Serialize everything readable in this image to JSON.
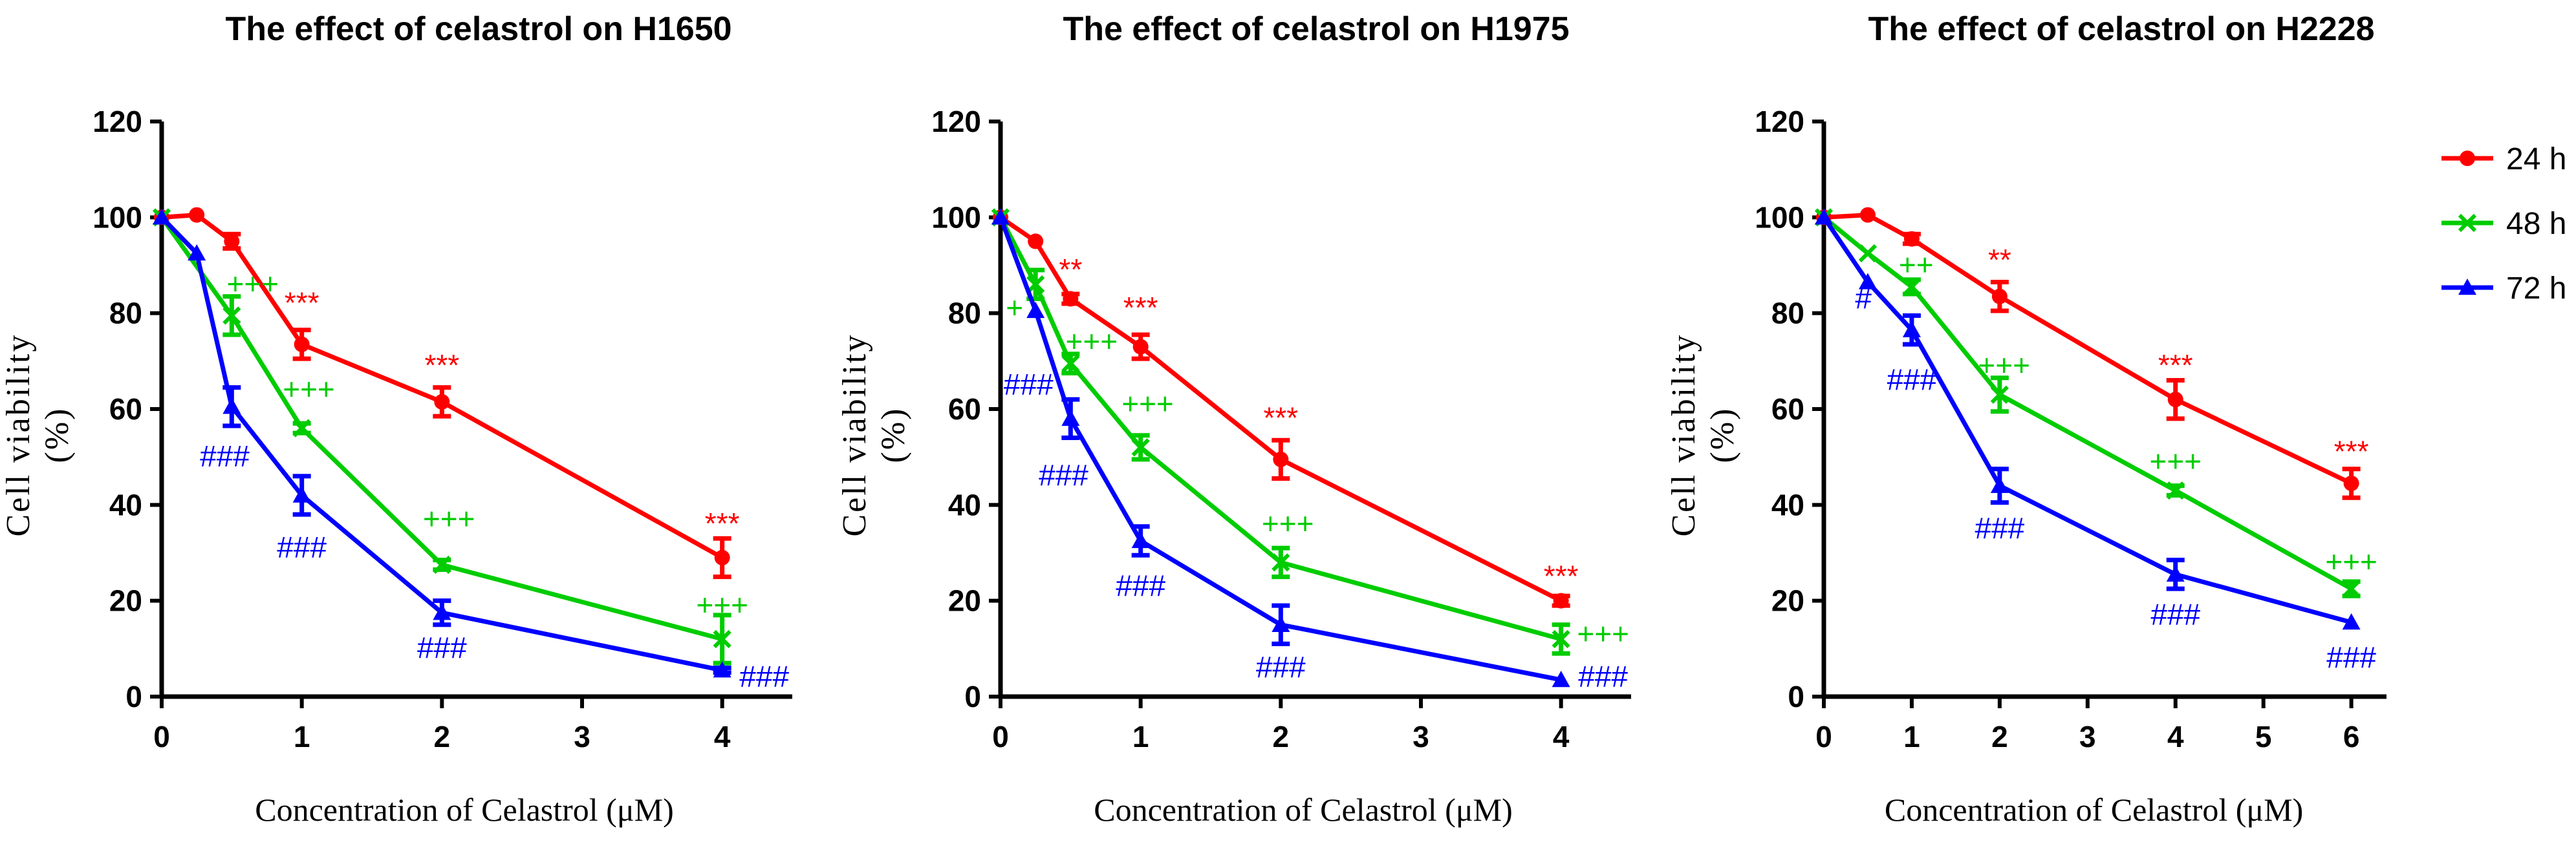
{
  "chart_data": [
    {
      "type": "line",
      "title": "The effect of celastrol on H1650",
      "xlabel": "Concentration  of Celastrol (μM)",
      "ylabel": "Cell viability",
      "ylabel_unit": "(%)",
      "xlim": [
        0,
        4.5
      ],
      "ylim": [
        0,
        120
      ],
      "x_ticks": [
        0,
        1,
        2,
        3,
        4
      ],
      "y_ticks": [
        0,
        20,
        40,
        60,
        80,
        100,
        120
      ],
      "series": [
        {
          "name": "24 h",
          "color": "#ff0000",
          "marker": "circle",
          "x": [
            0,
            0.25,
            0.5,
            1,
            2,
            4
          ],
          "y": [
            100,
            100.5,
            95,
            73.5,
            61.5,
            29
          ],
          "err": [
            0,
            0,
            1.5,
            3,
            3,
            4
          ]
        },
        {
          "name": "48 h",
          "color": "#00cc00",
          "marker": "cross",
          "x": [
            0,
            0.5,
            1,
            2,
            4
          ],
          "y": [
            100,
            79.5,
            56,
            27.5,
            12
          ],
          "err": [
            0,
            4,
            1,
            1,
            5
          ]
        },
        {
          "name": "72 h",
          "color": "#0000ff",
          "marker": "triangle",
          "x": [
            0,
            0.25,
            0.5,
            1,
            2,
            4
          ],
          "y": [
            100,
            92.5,
            60.5,
            42,
            17.5,
            5.5
          ],
          "err": [
            0,
            0,
            4,
            4,
            2.5,
            0.5
          ]
        }
      ],
      "annotations": [
        {
          "text": "***",
          "x": 1,
          "y": 80,
          "color": "#ff0000"
        },
        {
          "text": "***",
          "x": 2,
          "y": 67,
          "color": "#ff0000"
        },
        {
          "text": "***",
          "x": 4,
          "y": 34,
          "color": "#ff0000"
        },
        {
          "text": "+++",
          "x": 0.65,
          "y": 84,
          "color": "#00cc00"
        },
        {
          "text": "+++",
          "x": 1.05,
          "y": 62,
          "color": "#00cc00"
        },
        {
          "text": "+++",
          "x": 2.05,
          "y": 35,
          "color": "#00cc00"
        },
        {
          "text": "+++",
          "x": 4.0,
          "y": 17,
          "color": "#00cc00"
        },
        {
          "text": "###",
          "x": 0.45,
          "y": 48,
          "color": "#0000ff"
        },
        {
          "text": "###",
          "x": 1.0,
          "y": 29,
          "color": "#0000ff"
        },
        {
          "text": "###",
          "x": 2.0,
          "y": 8,
          "color": "#0000ff"
        },
        {
          "text": "###",
          "x": 4.3,
          "y": 2,
          "color": "#0000ff"
        }
      ]
    },
    {
      "type": "line",
      "title": "The effect of celastrol on H1975",
      "xlabel": "Concentration  of Celastrol (μM)",
      "ylabel": "Cell viability",
      "ylabel_unit": "(%)",
      "xlim": [
        0,
        4.5
      ],
      "ylim": [
        0,
        120
      ],
      "x_ticks": [
        0,
        1,
        2,
        3,
        4
      ],
      "y_ticks": [
        0,
        20,
        40,
        60,
        80,
        100,
        120
      ],
      "series": [
        {
          "name": "24 h",
          "color": "#ff0000",
          "marker": "circle",
          "x": [
            0,
            0.25,
            0.5,
            1,
            2,
            4
          ],
          "y": [
            100,
            95,
            83,
            73,
            49.5,
            20
          ],
          "err": [
            0,
            0,
            1,
            2.5,
            4,
            1
          ]
        },
        {
          "name": "48 h",
          "color": "#00cc00",
          "marker": "cross",
          "x": [
            0,
            0.25,
            0.5,
            1,
            2,
            4
          ],
          "y": [
            100,
            86,
            69.5,
            52,
            28,
            12
          ],
          "err": [
            0,
            3,
            2,
            2.5,
            3,
            3
          ]
        },
        {
          "name": "72 h",
          "color": "#0000ff",
          "marker": "triangle",
          "x": [
            0,
            0.25,
            0.5,
            1,
            2,
            4
          ],
          "y": [
            100,
            80.5,
            58,
            32.5,
            15,
            3.5
          ],
          "err": [
            0,
            0,
            4,
            3,
            4,
            0
          ]
        }
      ],
      "annotations": [
        {
          "text": "**",
          "x": 0.5,
          "y": 87,
          "color": "#ff0000"
        },
        {
          "text": "***",
          "x": 1,
          "y": 79,
          "color": "#ff0000"
        },
        {
          "text": "***",
          "x": 2,
          "y": 56,
          "color": "#ff0000"
        },
        {
          "text": "***",
          "x": 4,
          "y": 23,
          "color": "#ff0000"
        },
        {
          "text": "+",
          "x": 0.1,
          "y": 79,
          "color": "#00cc00"
        },
        {
          "text": "+++",
          "x": 0.65,
          "y": 72,
          "color": "#00cc00"
        },
        {
          "text": "+++",
          "x": 1.05,
          "y": 59,
          "color": "#00cc00"
        },
        {
          "text": "+++",
          "x": 2.05,
          "y": 34,
          "color": "#00cc00"
        },
        {
          "text": "+++",
          "x": 4.3,
          "y": 11,
          "color": "#00cc00"
        },
        {
          "text": "###",
          "x": 0.2,
          "y": 63,
          "color": "#0000ff"
        },
        {
          "text": "###",
          "x": 0.45,
          "y": 44,
          "color": "#0000ff"
        },
        {
          "text": "###",
          "x": 1.0,
          "y": 21,
          "color": "#0000ff"
        },
        {
          "text": "###",
          "x": 2.0,
          "y": 4,
          "color": "#0000ff"
        },
        {
          "text": "###",
          "x": 4.3,
          "y": 2,
          "color": "#0000ff"
        }
      ]
    },
    {
      "type": "line",
      "title": "The effect of celastrol on H2228",
      "xlabel": "Concentration  of Celastrol (μM)",
      "ylabel": "Cell viability",
      "ylabel_unit": "(%)",
      "xlim": [
        0,
        6.4
      ],
      "ylim": [
        0,
        120
      ],
      "x_ticks": [
        0,
        1,
        2,
        3,
        4,
        5,
        6
      ],
      "y_ticks": [
        0,
        20,
        40,
        60,
        80,
        100,
        120
      ],
      "series": [
        {
          "name": "24 h",
          "color": "#ff0000",
          "marker": "circle",
          "x": [
            0,
            0.5,
            1,
            2,
            4,
            6
          ],
          "y": [
            100,
            100.5,
            95.5,
            83.5,
            62,
            44.5
          ],
          "err": [
            0,
            0,
            1,
            3,
            4,
            3
          ]
        },
        {
          "name": "48 h",
          "color": "#00cc00",
          "marker": "cross",
          "x": [
            0,
            0.5,
            1,
            2,
            4,
            6
          ],
          "y": [
            100,
            92.5,
            85.5,
            63,
            43,
            22.5
          ],
          "err": [
            0,
            0,
            1.5,
            3.5,
            1,
            1.5
          ]
        },
        {
          "name": "72 h",
          "color": "#0000ff",
          "marker": "triangle",
          "x": [
            0,
            0.5,
            1,
            2,
            4,
            6
          ],
          "y": [
            100,
            86.5,
            76.5,
            44,
            25.5,
            15.5
          ],
          "err": [
            0,
            0,
            3,
            3.5,
            3,
            0
          ]
        }
      ],
      "annotations": [
        {
          "text": "**",
          "x": 2,
          "y": 89,
          "color": "#ff0000"
        },
        {
          "text": "***",
          "x": 4,
          "y": 67,
          "color": "#ff0000"
        },
        {
          "text": "***",
          "x": 6,
          "y": 49,
          "color": "#ff0000"
        },
        {
          "text": "++",
          "x": 1.05,
          "y": 88,
          "color": "#00cc00"
        },
        {
          "text": "+++",
          "x": 2.05,
          "y": 67,
          "color": "#00cc00"
        },
        {
          "text": "+++",
          "x": 4.0,
          "y": 47,
          "color": "#00cc00"
        },
        {
          "text": "+++",
          "x": 6.0,
          "y": 26,
          "color": "#00cc00"
        },
        {
          "text": "#",
          "x": 0.45,
          "y": 81,
          "color": "#0000ff"
        },
        {
          "text": "###",
          "x": 1.0,
          "y": 64,
          "color": "#0000ff"
        },
        {
          "text": "###",
          "x": 2.0,
          "y": 33,
          "color": "#0000ff"
        },
        {
          "text": "###",
          "x": 4.0,
          "y": 15,
          "color": "#0000ff"
        },
        {
          "text": "###",
          "x": 6.0,
          "y": 6,
          "color": "#0000ff"
        }
      ]
    }
  ],
  "legend": {
    "position": "right",
    "items": [
      {
        "label": "24 h",
        "color": "#ff0000",
        "marker": "circle"
      },
      {
        "label": "48 h",
        "color": "#00cc00",
        "marker": "cross"
      },
      {
        "label": "72 h",
        "color": "#0000ff",
        "marker": "triangle"
      }
    ]
  }
}
